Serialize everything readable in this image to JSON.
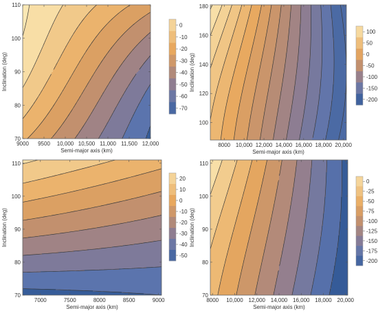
{
  "chart_data": [
    {
      "type": "contour",
      "xlabel": "Semi-major axis (km)",
      "ylabel": "Inclination (deg)",
      "xlim": [
        9000,
        12000
      ],
      "ylim": [
        70,
        110
      ],
      "x_ticks": [
        9000,
        9500,
        10000,
        10500,
        11000,
        11500,
        12000
      ],
      "x_tick_labels": [
        "9000",
        "9500",
        "10,000",
        "10,500",
        "11,000",
        "11,500",
        "12,000"
      ],
      "y_ticks": [
        70,
        80,
        90,
        100,
        110
      ],
      "y_tick_labels": [
        "70",
        "80",
        "90",
        "100",
        "110"
      ],
      "legend_levels": [
        0,
        -10,
        -20,
        -30,
        -40,
        -50,
        -60,
        -70
      ],
      "legend_labels": [
        "0",
        "-10",
        "-20",
        "-30",
        "-40",
        "-50",
        "-60",
        "-70"
      ],
      "contour_levels": [
        -80,
        -70,
        -60,
        -50,
        -40,
        -30,
        -20,
        -10,
        0,
        10
      ],
      "value_range": [
        -80,
        10
      ],
      "field": {
        "a0": 9000,
        "a1": 12000,
        "i0": 70,
        "i1": 110,
        "f00": -18,
        "f10": -72,
        "f01": 12,
        "f11": -26,
        "bend": -14
      }
    },
    {
      "type": "contour",
      "xlabel": "Semi-major axis (km)",
      "ylabel": "Inclination (deg)",
      "xlim": [
        6600,
        20300
      ],
      "ylim": [
        88,
        181
      ],
      "x_ticks": [
        8000,
        10000,
        12000,
        14000,
        16000,
        18000,
        20000
      ],
      "x_tick_labels": [
        "8000",
        "10,000",
        "12,000",
        "14,000",
        "16,000",
        "18,000",
        "20,000"
      ],
      "y_ticks": [
        100,
        120,
        140,
        160,
        180
      ],
      "y_tick_labels": [
        "100",
        "120",
        "140",
        "160",
        "180"
      ],
      "legend_levels": [
        100,
        50,
        0,
        -50,
        -100,
        -150,
        -200
      ],
      "legend_labels": [
        "100",
        "50",
        "0",
        "-50",
        "-100",
        "-150",
        "-200"
      ],
      "contour_levels": [
        -200,
        -175,
        -150,
        -125,
        -100,
        -75,
        -50,
        -25,
        0,
        25,
        50,
        75,
        100,
        125
      ],
      "value_range": [
        -230,
        130
      ],
      "field": {
        "a0": 6600,
        "a1": 20300,
        "i0": 88,
        "i1": 181,
        "f00": 45,
        "f10": -215,
        "f01": 130,
        "f11": -215,
        "bend": 30
      }
    },
    {
      "type": "contour",
      "xlabel": "Semi-major axis (km)",
      "ylabel": "Inclination (deg)",
      "xlim": [
        6700,
        9050
      ],
      "ylim": [
        70,
        111
      ],
      "x_ticks": [
        7000,
        7500,
        8000,
        8500,
        9000
      ],
      "x_tick_labels": [
        "7000",
        "7500",
        "8000",
        "8500",
        "9000"
      ],
      "y_ticks": [
        70,
        80,
        90,
        100,
        110
      ],
      "y_tick_labels": [
        "70",
        "80",
        "90",
        "100",
        "110"
      ],
      "legend_levels": [
        20,
        10,
        0,
        -10,
        -20,
        -30,
        -40,
        -50
      ],
      "legend_labels": [
        "20",
        "10",
        "0",
        "-10",
        "-20",
        "-30",
        "-40",
        "-50"
      ],
      "contour_levels": [
        -60,
        -50,
        -40,
        -30,
        -20,
        -10,
        0,
        10,
        20,
        30
      ],
      "value_range": [
        -60,
        30
      ],
      "field": {
        "a0": 6700,
        "a1": 9050,
        "i0": 70,
        "i1": 111,
        "f00": -54,
        "f10": -50,
        "f01": 22,
        "f11": 4,
        "bend": -4
      }
    },
    {
      "type": "contour",
      "xlabel": "Semi-major axis (km)",
      "ylabel": "Inclination (deg)",
      "xlim": [
        7800,
        20200
      ],
      "ylim": [
        70,
        111
      ],
      "x_ticks": [
        8000,
        10000,
        12000,
        14000,
        16000,
        18000,
        20000
      ],
      "x_tick_labels": [
        "8000",
        "10,000",
        "12,000",
        "14,000",
        "16,000",
        "18,000",
        "20,000"
      ],
      "y_ticks": [
        70,
        80,
        90,
        100,
        110
      ],
      "y_tick_labels": [
        "70",
        "80",
        "90",
        "100",
        "110"
      ],
      "legend_levels": [
        0,
        -25,
        -50,
        -75,
        -100,
        -125,
        -150,
        -175,
        -200
      ],
      "legend_labels": [
        "0",
        "-25",
        "-50",
        "-75",
        "-100",
        "-125",
        "-150",
        "-175",
        "-200"
      ],
      "contour_levels": [
        -225,
        -200,
        -175,
        -150,
        -125,
        -100,
        -75,
        -50,
        -25,
        0,
        25
      ],
      "value_range": [
        -225,
        25
      ],
      "field": {
        "a0": 7800,
        "a1": 20200,
        "i0": 70,
        "i1": 111,
        "f00": -40,
        "f10": -225,
        "f01": 20,
        "f11": -210,
        "bend": 12
      }
    }
  ],
  "colors": {
    "palette": [
      "#24508f",
      "#5b74ad",
      "#8f7d91",
      "#c2906e",
      "#e8a85e",
      "#f1c98a",
      "#fbe8b4"
    ],
    "contour_line": "#3a3a3a",
    "frame": "#666666"
  }
}
